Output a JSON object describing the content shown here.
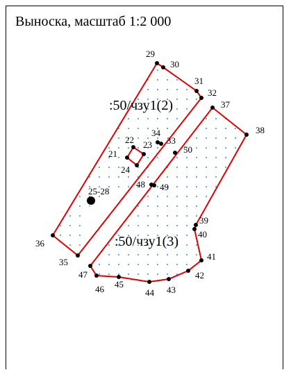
{
  "title": "Выноска, масштаб 1:2 000",
  "colors": {
    "boundary": "#e00000",
    "hatch": "#1e90ff",
    "vertex": "#000000",
    "frame": "#000000"
  },
  "parcels": [
    {
      "label": ":50/чзу1(2)"
    },
    {
      "label": ":50/чзу1(3)"
    }
  ],
  "point_labels": [
    "29",
    "30",
    "31",
    "32",
    "37",
    "38",
    "34",
    "33",
    "22",
    "23",
    "21",
    "24",
    "50",
    "48",
    "49",
    "25-28",
    "36",
    "35",
    "39",
    "40",
    "41",
    "42",
    "47",
    "46",
    "45",
    "44",
    "43"
  ]
}
